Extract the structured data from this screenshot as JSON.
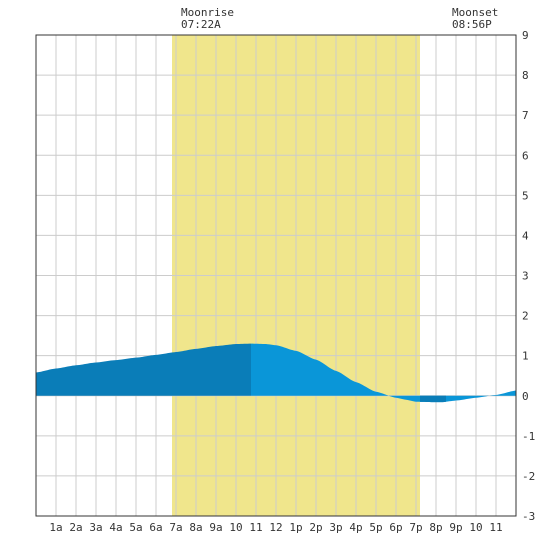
{
  "moonrise": {
    "label": "Moonrise",
    "time": "07:22A"
  },
  "moonset": {
    "label": "Moonset",
    "time": "08:56P"
  },
  "colors": {
    "daylight_band": "#f0e68c",
    "tide_fill_dark": "#0a7db8",
    "tide_fill_light": "#0a96d8",
    "grid": "#cccccc",
    "axis": "#333333",
    "background": "#ffffff"
  },
  "chart_data": {
    "type": "area",
    "x_unit": "hour of day",
    "xlim": [
      0,
      24
    ],
    "ylim": [
      -3,
      9
    ],
    "grid": true,
    "x_tick_labels": [
      "1a",
      "2a",
      "3a",
      "4a",
      "5a",
      "6a",
      "7a",
      "8a",
      "9a",
      "10",
      "11",
      "12",
      "1p",
      "2p",
      "3p",
      "4p",
      "5p",
      "6p",
      "7p",
      "8p",
      "9p",
      "10",
      "11"
    ],
    "y_tick_labels": [
      "-3",
      "-2",
      "-1",
      "0",
      "1",
      "2",
      "3",
      "4",
      "5",
      "6",
      "7",
      "8",
      "9"
    ],
    "moon_visible_hours": [
      6.8,
      19.2
    ],
    "series": [
      {
        "x": [
          0,
          1,
          2,
          3,
          4,
          5,
          6,
          7,
          8,
          9,
          10,
          10.75,
          11.5,
          12,
          13,
          14,
          15,
          16,
          17,
          18,
          18.5,
          19,
          20,
          20.3,
          21,
          22,
          23,
          24
        ],
        "y": [
          0.58,
          0.68,
          0.76,
          0.83,
          0.89,
          0.95,
          1.02,
          1.09,
          1.17,
          1.24,
          1.29,
          1.3,
          1.29,
          1.26,
          1.12,
          0.9,
          0.62,
          0.34,
          0.1,
          -0.05,
          -0.1,
          -0.15,
          -0.16,
          -0.16,
          -0.12,
          -0.05,
          0.02,
          0.13
        ]
      }
    ],
    "low_tide_segment_hours": [
      19.2,
      20.5
    ]
  }
}
